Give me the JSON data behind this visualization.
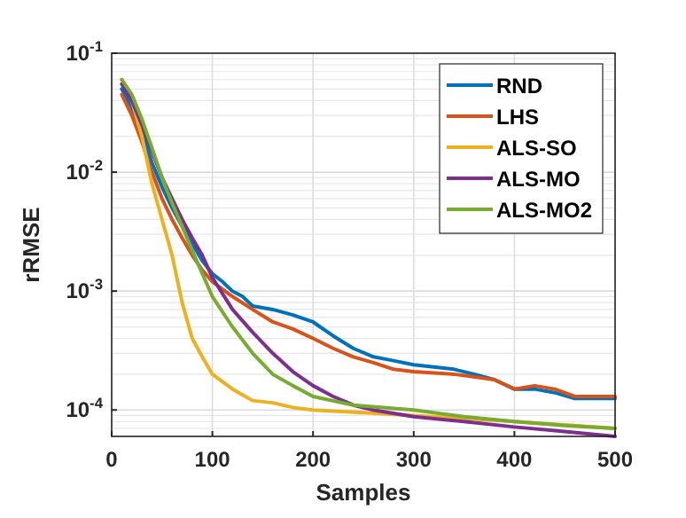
{
  "chart_data": {
    "type": "line",
    "xlabel": "Samples",
    "ylabel": "rRMSE",
    "log": "y",
    "grid": true,
    "legend": "top right",
    "line_style": "solid",
    "marker": "none",
    "xlim": [
      0,
      500
    ],
    "xticks": [
      0,
      100,
      200,
      300,
      400,
      500
    ],
    "ylim": [
      6e-05,
      0.1
    ],
    "yticks": [
      {
        "value": 0.0001,
        "label": "10$^{-4}$"
      },
      {
        "value": 0.001,
        "label": "10$^{-3}$"
      },
      {
        "value": 0.01,
        "label": "10$^{-2}$"
      },
      {
        "value": 0.1,
        "label": "10$^{-1}$"
      }
    ],
    "series": [
      {
        "name": "RND",
        "color": "#0072bd",
        "x": [
          10,
          20,
          30,
          40,
          50,
          60,
          70,
          80,
          90,
          100,
          110,
          120,
          130,
          140,
          160,
          180,
          200,
          220,
          240,
          260,
          280,
          300,
          320,
          340,
          360,
          380,
          400,
          420,
          440,
          460,
          480,
          500
        ],
        "values": [
          0.05,
          0.035,
          0.022,
          0.012,
          0.0075,
          0.005,
          0.0035,
          0.0025,
          0.0018,
          0.0014,
          0.0012,
          0.001,
          0.0009,
          0.00075,
          0.0007,
          0.00063,
          0.00055,
          0.00042,
          0.00033,
          0.00028,
          0.00026,
          0.00024,
          0.00023,
          0.00022,
          0.0002,
          0.00018,
          0.00015,
          0.00015,
          0.00014,
          0.000125,
          0.000125,
          0.000125
        ]
      },
      {
        "name": "LHS",
        "color": "#d95319",
        "x": [
          10,
          20,
          30,
          40,
          50,
          60,
          70,
          80,
          90,
          100,
          120,
          140,
          160,
          180,
          200,
          220,
          240,
          260,
          280,
          300,
          340,
          380,
          400,
          420,
          440,
          460,
          500
        ],
        "values": [
          0.045,
          0.03,
          0.018,
          0.01,
          0.006,
          0.004,
          0.0028,
          0.002,
          0.0015,
          0.0012,
          0.0009,
          0.0007,
          0.00055,
          0.00048,
          0.0004,
          0.00033,
          0.00028,
          0.00025,
          0.00022,
          0.00021,
          0.0002,
          0.00018,
          0.00015,
          0.00016,
          0.00015,
          0.00013,
          0.00013
        ]
      },
      {
        "name": "ALS-SO",
        "color": "#edb120",
        "x": [
          10,
          20,
          30,
          40,
          50,
          60,
          70,
          80,
          90,
          100,
          120,
          140,
          160,
          180,
          200,
          250,
          300,
          350,
          400,
          450,
          500
        ],
        "values": [
          0.06,
          0.04,
          0.02,
          0.008,
          0.004,
          0.002,
          0.0008,
          0.0004,
          0.00028,
          0.0002,
          0.00015,
          0.00012,
          0.000115,
          0.000105,
          0.0001,
          9.5e-05,
          9e-05,
          8.5e-05,
          8e-05,
          7.5e-05,
          7e-05
        ]
      },
      {
        "name": "ALS-MO",
        "color": "#7e2f8e",
        "x": [
          10,
          20,
          30,
          40,
          50,
          60,
          70,
          80,
          90,
          100,
          120,
          140,
          160,
          180,
          200,
          220,
          240,
          260,
          300,
          350,
          400,
          450,
          500
        ],
        "values": [
          0.055,
          0.04,
          0.025,
          0.015,
          0.009,
          0.006,
          0.004,
          0.0028,
          0.002,
          0.0013,
          0.0007,
          0.00045,
          0.0003,
          0.00021,
          0.00016,
          0.00013,
          0.00011,
          0.0001,
          8.8e-05,
          8e-05,
          7.2e-05,
          6.6e-05,
          6e-05
        ]
      },
      {
        "name": "ALS-MO2",
        "color": "#77ac30",
        "x": [
          10,
          20,
          30,
          40,
          50,
          60,
          70,
          80,
          90,
          100,
          120,
          140,
          160,
          180,
          200,
          240,
          300,
          350,
          400,
          450,
          500
        ],
        "values": [
          0.06,
          0.045,
          0.028,
          0.016,
          0.009,
          0.0055,
          0.0035,
          0.0022,
          0.0014,
          0.0009,
          0.0005,
          0.0003,
          0.0002,
          0.00016,
          0.00013,
          0.00011,
          0.0001,
          8.8e-05,
          8e-05,
          7.4e-05,
          7e-05
        ]
      }
    ]
  }
}
